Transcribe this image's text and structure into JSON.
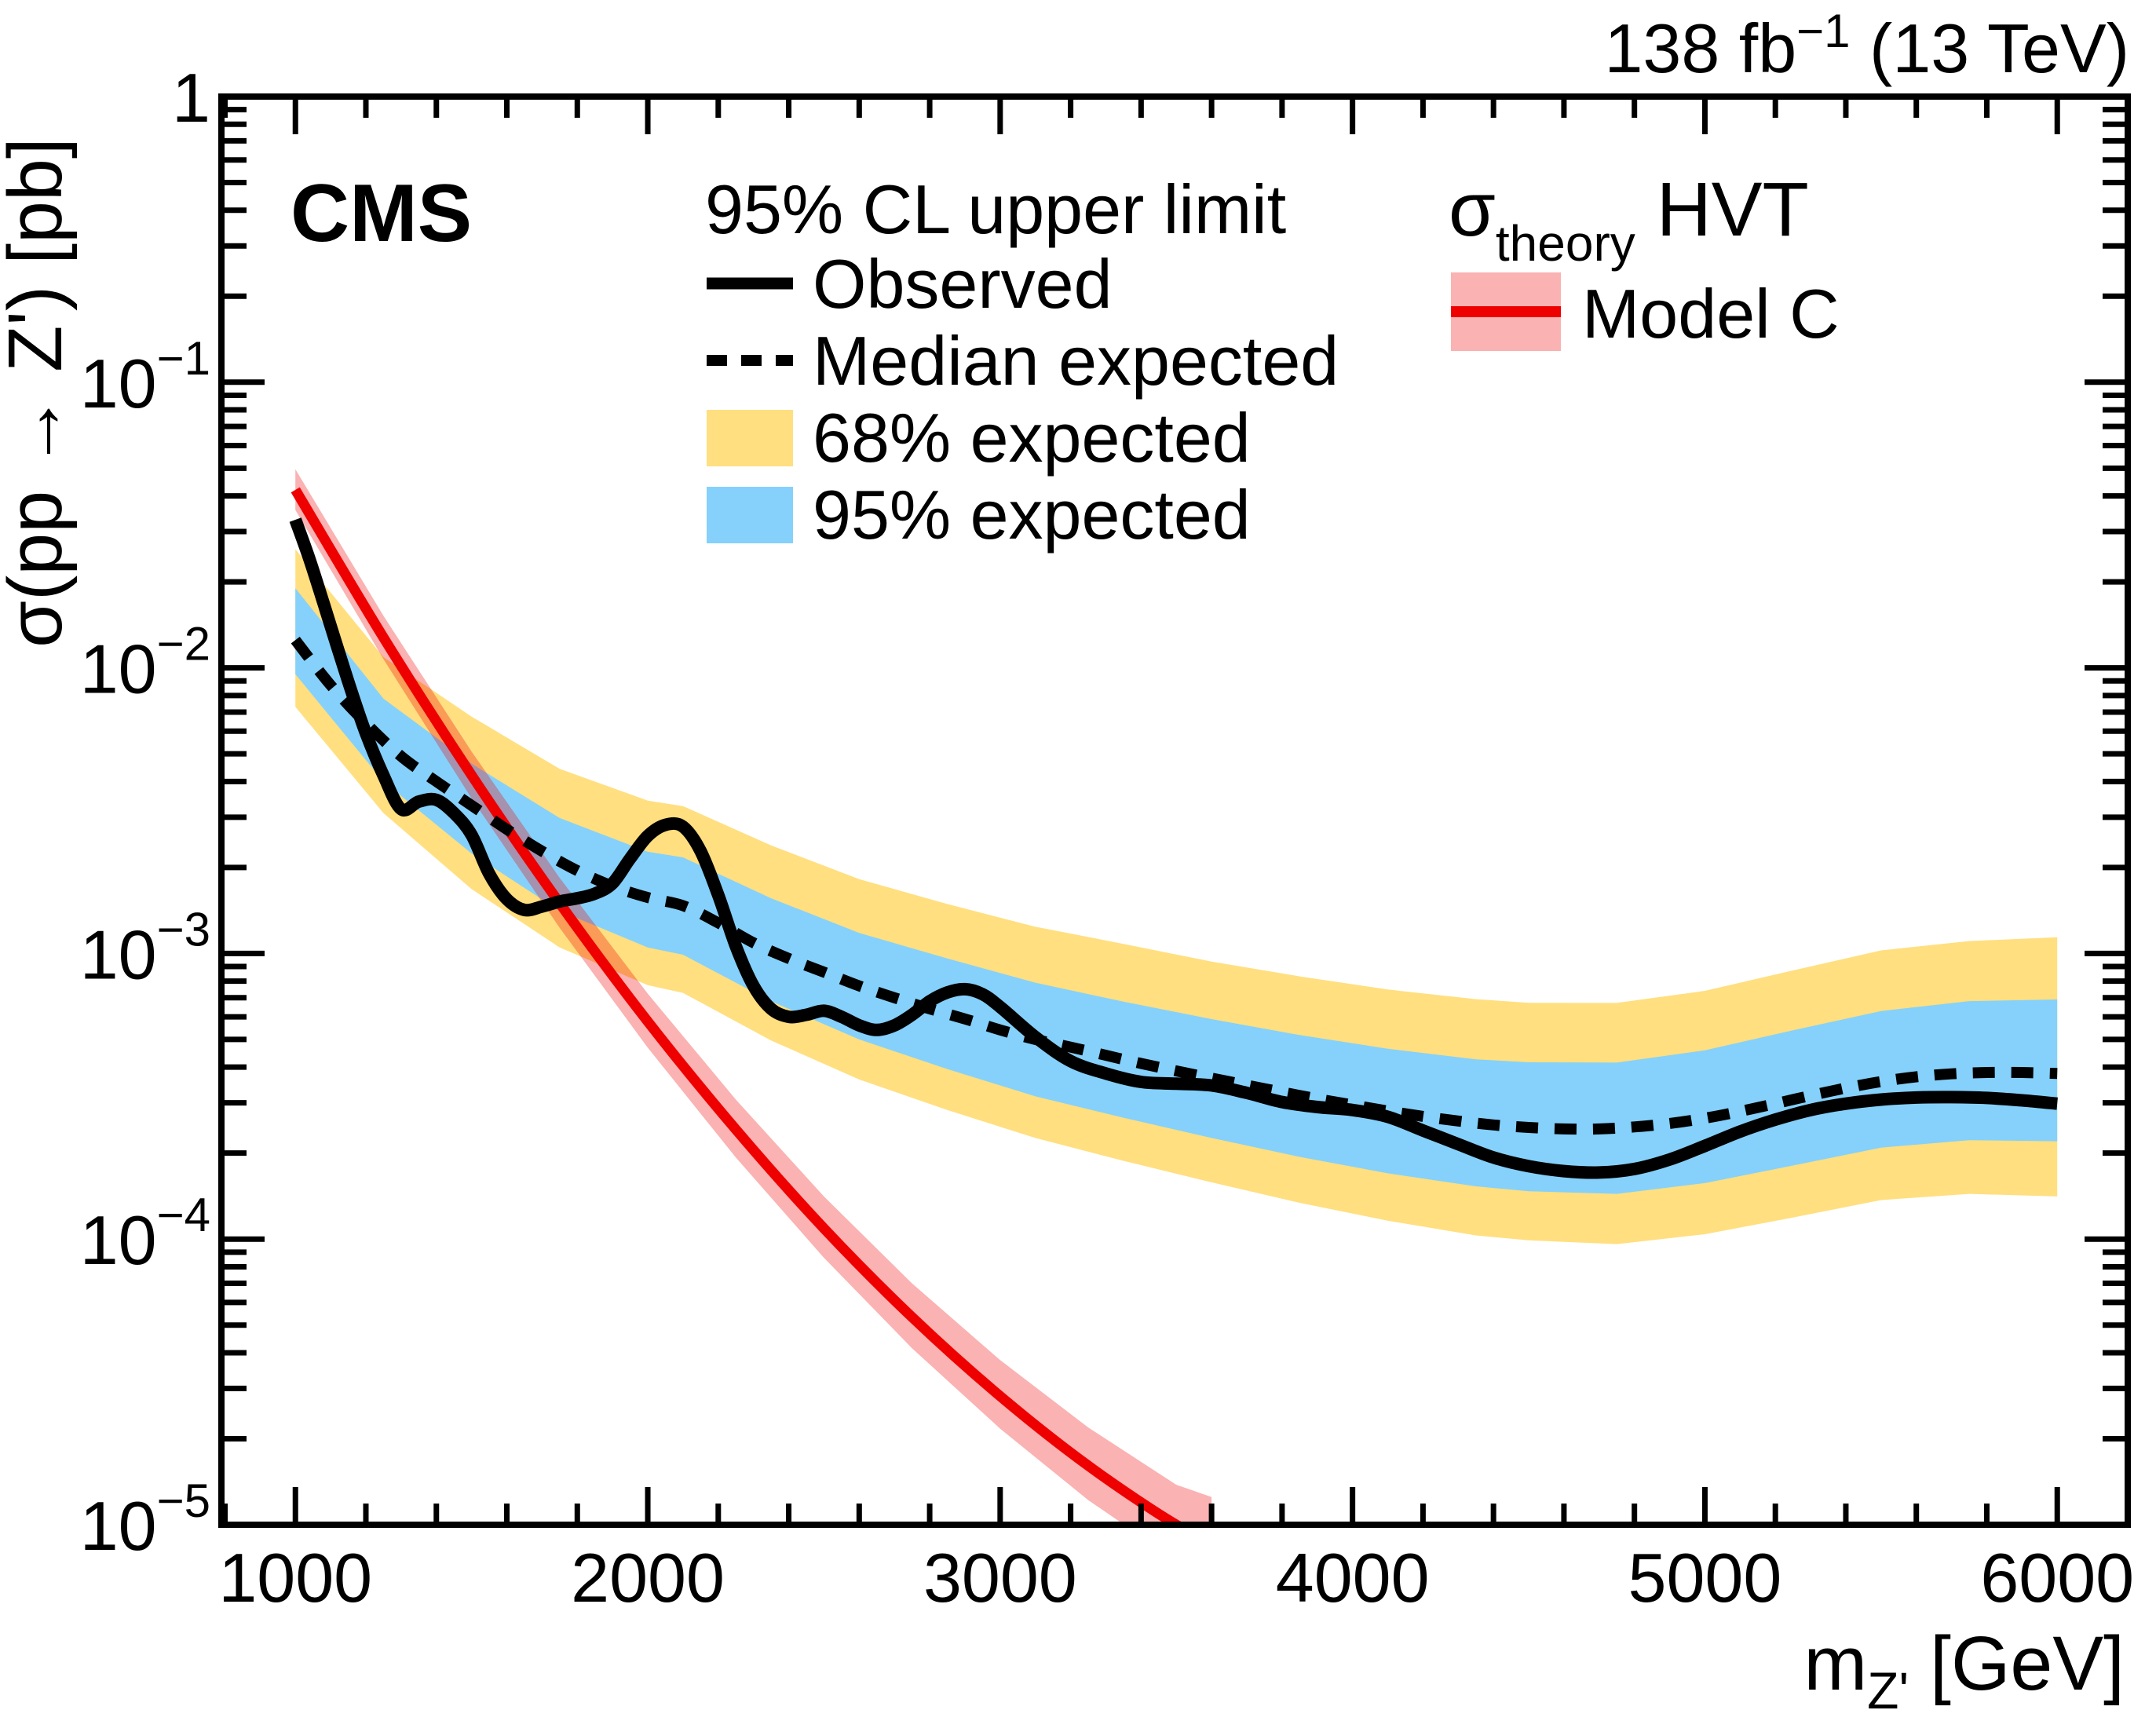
{
  "meta": {
    "experiment": "CMS",
    "lumi": {
      "pre": "138 fb",
      "sup": "−1",
      "post": " (13 TeV)"
    }
  },
  "legend": {
    "title": "95% CL upper limit",
    "observed_label": "Observed",
    "median_label": "Median expected",
    "band68_label": "68% expected",
    "band95_label": "95% expected",
    "theory_sigma": "σ",
    "theory_sub": "theory",
    "theory_model": "HVT",
    "theory_entry": "Model C"
  },
  "colors": {
    "band68": "#ffdf7f",
    "band95": "#85d1fb",
    "observed": "#000000",
    "expected": "#000000",
    "theory_line": "#ee0000",
    "theory_band": "rgba(238,0,0,0.30)"
  },
  "axes": {
    "x": {
      "title_pre": "m",
      "title_sub": "Z'",
      "title_post": " [GeV]",
      "min": 790,
      "max": 6200,
      "major_ticks": [
        1000,
        2000,
        3000,
        4000,
        5000,
        6000
      ],
      "tick_labels": [
        "1000",
        "2000",
        "3000",
        "4000",
        "5000",
        "6000"
      ],
      "minor_step": 200
    },
    "y": {
      "title": "σ(pp → Z') [pb]",
      "min": 1e-05,
      "max": 1,
      "scale": "log",
      "decade_labels": [
        {
          "base": "1",
          "exp": ""
        },
        {
          "base": "10",
          "exp": "−1"
        },
        {
          "base": "10",
          "exp": "−2"
        },
        {
          "base": "10",
          "exp": "−3"
        },
        {
          "base": "10",
          "exp": "−4"
        },
        {
          "base": "10",
          "exp": "−5"
        }
      ]
    }
  },
  "chart_data": {
    "type": "line",
    "title": "",
    "xlabel": "m_Z' [GeV]",
    "ylabel": "sigma(pp -> Z') [pb]",
    "xlim": [
      790,
      6200
    ],
    "ylim": [
      1e-05,
      1
    ],
    "yscale": "log",
    "legend_position": "top",
    "grid": false,
    "observed": {
      "name": "Observed",
      "m": [
        1000,
        1040,
        1080,
        1120,
        1160,
        1200,
        1250,
        1300,
        1350,
        1400,
        1450,
        1500,
        1550,
        1600,
        1650,
        1700,
        1750,
        1800,
        1850,
        1900,
        1950,
        2000,
        2050,
        2100,
        2150,
        2200,
        2250,
        2300,
        2350,
        2400,
        2450,
        2500,
        2550,
        2600,
        2650,
        2700,
        2750,
        2800,
        2850,
        2900,
        2950,
        3000,
        3100,
        3200,
        3300,
        3400,
        3500,
        3600,
        3700,
        3800,
        3900,
        4000,
        4100,
        4200,
        4300,
        4400,
        4500,
        4600,
        4700,
        4800,
        4900,
        5000,
        5100,
        5200,
        5300,
        5400,
        5500,
        5600,
        5700,
        5800,
        5900,
        6000
      ],
      "sigma": [
        0.033,
        0.024,
        0.0168,
        0.0117,
        0.0082,
        0.0059,
        0.0042,
        0.0032,
        0.0034,
        0.00345,
        0.0031,
        0.0026,
        0.0019,
        0.00155,
        0.00142,
        0.00146,
        0.00152,
        0.00156,
        0.00162,
        0.00176,
        0.00215,
        0.00258,
        0.00282,
        0.00278,
        0.00228,
        0.0016,
        0.00106,
        0.00077,
        0.00064,
        0.0006,
        0.00061,
        0.00063,
        0.0006,
        0.00056,
        0.00054,
        0.00056,
        0.00061,
        0.00068,
        0.00073,
        0.00075,
        0.00072,
        0.00065,
        0.00051,
        0.00042,
        0.00038,
        0.000355,
        0.00035,
        0.000345,
        0.000325,
        0.000302,
        0.00029,
        0.000283,
        0.000268,
        0.00024,
        0.000215,
        0.000193,
        0.00018,
        0.000173,
        0.000171,
        0.000176,
        0.00019,
        0.000212,
        0.000238,
        0.000262,
        0.000283,
        0.000298,
        0.000308,
        0.000313,
        0.000314,
        0.000312,
        0.000306,
        0.000298
      ]
    },
    "expected": {
      "name": "Median expected",
      "m": [
        1000,
        1100,
        1200,
        1300,
        1400,
        1500,
        1600,
        1700,
        1800,
        1900,
        2000,
        2100,
        2200,
        2300,
        2400,
        2500,
        2600,
        2700,
        2800,
        2900,
        3000,
        3100,
        3200,
        3300,
        3400,
        3500,
        3600,
        3700,
        3800,
        3900,
        4000,
        4100,
        4200,
        4300,
        4400,
        4500,
        4600,
        4700,
        4800,
        4900,
        5000,
        5100,
        5200,
        5300,
        5400,
        5500,
        5600,
        5700,
        5800,
        5900,
        6000
      ],
      "sigma": [
        0.0125,
        0.0087,
        0.0064,
        0.0049,
        0.004,
        0.0033,
        0.00272,
        0.00228,
        0.00195,
        0.00172,
        0.00157,
        0.00147,
        0.00128,
        0.00109,
        0.00096,
        0.00086,
        0.00077,
        0.0007,
        0.00064,
        0.00059,
        0.00054,
        0.0005,
        0.00047,
        0.00044,
        0.000412,
        0.000388,
        0.000366,
        0.000346,
        0.000327,
        0.00031,
        0.000295,
        0.000281,
        0.000269,
        0.000259,
        0.000251,
        0.000246,
        0.000243,
        0.000243,
        0.000247,
        0.000254,
        0.000265,
        0.00028,
        0.000298,
        0.000318,
        0.000338,
        0.000356,
        0.00037,
        0.000379,
        0.000383,
        0.000383,
        0.00038
      ]
    },
    "bands": {
      "m": [
        1000,
        1250,
        1500,
        1750,
        2000,
        2100,
        2350,
        2600,
        2850,
        3100,
        3350,
        3600,
        3850,
        4100,
        4350,
        4500,
        4750,
        5000,
        5250,
        5500,
        5750,
        6000
      ],
      "band68_up": [
        0.019,
        0.0078,
        0.00462,
        0.00298,
        0.00227,
        0.00217,
        0.00156,
        0.00118,
        0.00096,
        0.00079,
        0.000678,
        0.000589,
        0.000518,
        0.000464,
        0.000426,
        0.000416,
        0.000415,
        0.000458,
        0.000538,
        0.000629,
        0.000681,
        0.00069
      ],
      "band68_dn": [
        0.0095,
        0.004,
        0.00224,
        0.00141,
        0.00105,
        0.00099,
        0.00068,
        0.0005,
        0.000394,
        0.000316,
        0.000266,
        0.000226,
        0.000194,
        0.00017,
        0.000153,
        0.000147,
        0.000144,
        0.000157,
        0.000181,
        0.000209,
        0.000222,
        0.00022
      ],
      "band95_up": [
        0.026,
        0.0109,
        0.00675,
        0.00443,
        0.00343,
        0.00328,
        0.00239,
        0.00182,
        0.00149,
        0.00124,
        0.00108,
        0.000937,
        0.000831,
        0.000748,
        0.000692,
        0.000672,
        0.000671,
        0.00074,
        0.000872,
        0.001025,
        0.001105,
        0.00114
      ],
      "band95_dn": [
        0.0073,
        0.0031,
        0.00168,
        0.00105,
        0.000775,
        0.000728,
        0.000496,
        0.000362,
        0.000283,
        0.000226,
        0.000188,
        0.000158,
        0.000134,
        0.000116,
        0.000103,
        9.9e-05,
        9.6e-05,
        0.000104,
        0.000119,
        0.000137,
        0.000144,
        0.000141
      ]
    },
    "theory": {
      "name": "sigma_theory HVT Model C",
      "m": [
        1000,
        1250,
        1500,
        1750,
        2000,
        2250,
        2500,
        2750,
        3000,
        3250,
        3500,
        3600
      ],
      "sigma": [
        0.042,
        0.01277,
        0.00421,
        0.0015,
        0.000578,
        0.000242,
        0.000109,
        5.33e-05,
        2.82e-05,
        1.61e-05,
        1e-05,
        9e-06
      ],
      "sigma_up": [
        0.0496,
        0.0152,
        0.00509,
        0.00184,
        0.000723,
        0.000308,
        0.000141,
        7e-05,
        3.77e-05,
        2.19e-05,
        1.38e-05,
        1.25e-05
      ],
      "sigma_dn": [
        0.0357,
        0.01073,
        0.00349,
        0.00123,
        0.000468,
        0.000193,
        8.6e-05,
        4.15e-05,
        2.17e-05,
        1.22e-05,
        7.5e-06,
        6.6e-06
      ]
    }
  }
}
